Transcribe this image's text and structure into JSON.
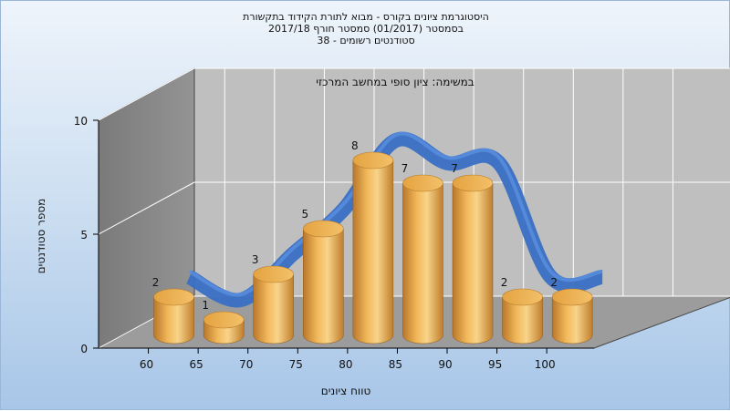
{
  "title_lines": [
    "היסטוגרמת ציונים בקורס - מבוא לתורת הקידוד בתקשורת",
    "בסמסטר   (01/2017)   סמסטר חורף   2017/18",
    "סטודנטים רשומים - 38"
  ],
  "colors": {
    "bar": "#e8a846",
    "curve": "#3a6fc4",
    "wall": "#bfbfbf",
    "side_wall": "#8a8a8a",
    "floor": "#9c9c9c"
  },
  "chart_data": {
    "type": "bar",
    "annotation": "במשימה: ציון סופי במחשב המרכזי",
    "xlabel": "טווח ציונים",
    "ylabel": "מספר סטודנטים",
    "categories": [
      "60",
      "65",
      "70",
      "75",
      "80",
      "85",
      "90",
      "95",
      "100"
    ],
    "values": [
      2,
      1,
      3,
      5,
      8,
      7,
      7,
      2,
      2
    ],
    "yticks": [
      "0",
      "5",
      "10"
    ],
    "ylim": [
      0,
      10
    ],
    "grid": true,
    "curve": true
  }
}
